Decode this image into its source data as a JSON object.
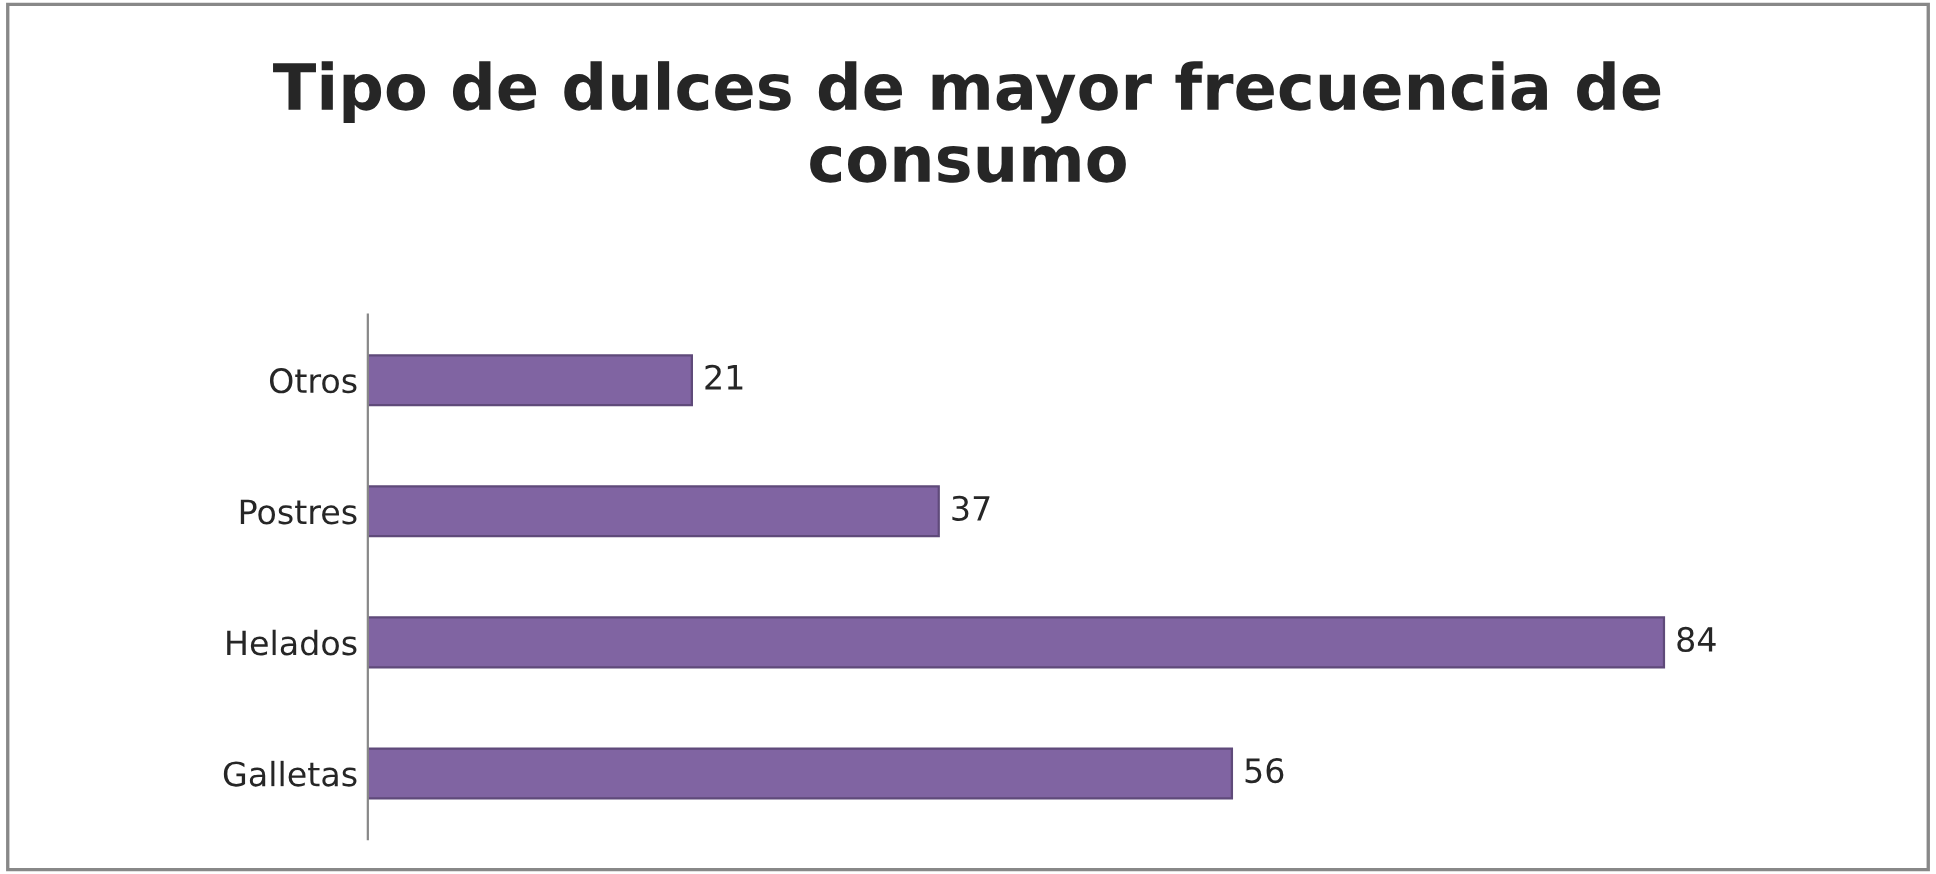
{
  "chart_data": {
    "type": "bar",
    "orientation": "horizontal",
    "title": "Tipo de dulces de mayor frecuencia de consumo",
    "categories": [
      "Otros",
      "Postres",
      "Helados",
      "Galletas"
    ],
    "values": [
      21,
      37,
      84,
      56
    ],
    "color": "#8064a2",
    "data_labels": true,
    "grid": false,
    "legend": false
  }
}
